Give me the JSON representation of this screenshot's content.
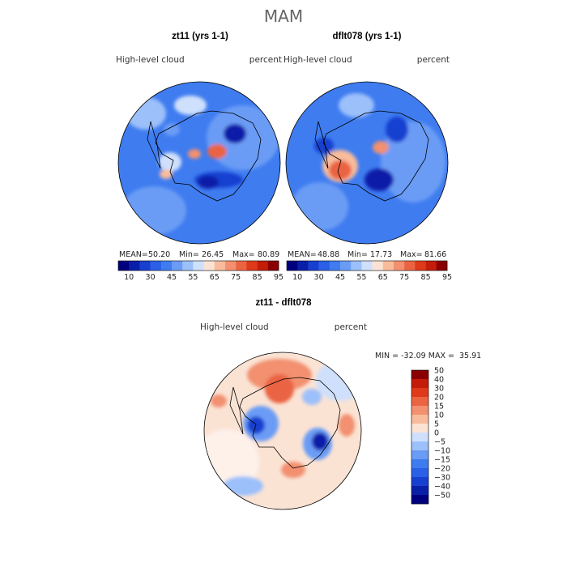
{
  "figure_title": "MAM",
  "colors": {
    "ramp": [
      "#00007f",
      "#0a1fa8",
      "#1840d0",
      "#2a5fe6",
      "#3f7cf0",
      "#6a9cf5",
      "#9cc0fa",
      "#cfe0fc",
      "#fbe3d4",
      "#f8bb9c",
      "#f29070",
      "#ea6442",
      "#de3a1a",
      "#c41c08",
      "#8a0000"
    ],
    "coast": "#000000"
  },
  "panels": [
    {
      "title": "zt11 (yrs 1-1)",
      "field_label": "High-level cloud",
      "units": "percent",
      "mean_label": "MEAN=",
      "mean_value": "50.20",
      "min_label": "Min=",
      "min_value": "26.45",
      "max_label": "Max=",
      "max_value": "80.89"
    },
    {
      "title": "dflt078 (yrs 1-1)",
      "field_label": "High-level cloud",
      "units": "percent",
      "mean_label": "MEAN=",
      "mean_value": "48.88",
      "min_label": "Min=",
      "min_value": "17.73",
      "max_label": "Max=",
      "max_value": "81.66"
    },
    {
      "title": "zt11 - dflt078",
      "field_label": "High-level cloud",
      "units": "percent",
      "minmax_text": "MIN = -32.09 MAX =  35.91"
    }
  ],
  "chart_data": [
    {
      "type": "heatmap",
      "title": "zt11 (yrs 1-1)",
      "projection": "south polar stereographic",
      "variable": "High-level cloud",
      "units": "percent",
      "stats": {
        "mean": 50.2,
        "min": 26.45,
        "max": 80.89
      },
      "levels": [
        10,
        20,
        30,
        40,
        45,
        50,
        55,
        60,
        65,
        70,
        75,
        80,
        85,
        90,
        95
      ],
      "colorbar_tick_labels": [
        "10",
        "30",
        "45",
        "55",
        "65",
        "75",
        "85",
        "95"
      ],
      "features": [
        {
          "lon": 120,
          "lat": -75,
          "value": 35
        },
        {
          "lon": -150,
          "lat": -80,
          "value": 30
        },
        {
          "lon": -60,
          "lat": -70,
          "value": 60
        },
        {
          "lon": 60,
          "lat": -72,
          "value": 62
        },
        {
          "lon": 170,
          "lat": -85,
          "value": 68
        },
        {
          "lon": 30,
          "lat": -55,
          "value": 45
        },
        {
          "lon": -120,
          "lat": -55,
          "value": 40
        },
        {
          "lon": 90,
          "lat": -55,
          "value": 38
        }
      ]
    },
    {
      "type": "heatmap",
      "title": "dflt078 (yrs 1-1)",
      "projection": "south polar stereographic",
      "variable": "High-level cloud",
      "units": "percent",
      "stats": {
        "mean": 48.88,
        "min": 17.73,
        "max": 81.66
      },
      "levels": [
        10,
        20,
        30,
        40,
        45,
        50,
        55,
        60,
        65,
        70,
        75,
        80,
        85,
        90,
        95
      ],
      "colorbar_tick_labels": [
        "10",
        "30",
        "45",
        "55",
        "65",
        "75",
        "85",
        "95"
      ],
      "features": [
        {
          "lon": 120,
          "lat": -75,
          "value": 33
        },
        {
          "lon": -150,
          "lat": -80,
          "value": 28
        },
        {
          "lon": -60,
          "lat": -68,
          "value": 72
        },
        {
          "lon": 60,
          "lat": -72,
          "value": 60
        },
        {
          "lon": 40,
          "lat": -82,
          "value": 30
        },
        {
          "lon": -90,
          "lat": -60,
          "value": 40
        },
        {
          "lon": 150,
          "lat": -60,
          "value": 42
        },
        {
          "lon": -20,
          "lat": -60,
          "value": 50
        }
      ]
    },
    {
      "type": "heatmap",
      "title": "zt11 - dflt078",
      "projection": "south polar stereographic",
      "variable": "High-level cloud",
      "units": "percent",
      "stats": {
        "min": -32.09,
        "max": 35.91
      },
      "levels": [
        -50,
        -40,
        -30,
        -20,
        -15,
        -10,
        -5,
        0,
        5,
        10,
        15,
        20,
        30,
        40,
        50
      ],
      "colorbar_tick_labels": [
        "50",
        "40",
        "30",
        "20",
        "15",
        "10",
        "5",
        "0",
        "−5",
        "−10",
        "−15",
        "−20",
        "−30",
        "−40",
        "−50"
      ],
      "features": [
        {
          "lon": 10,
          "lat": -62,
          "value": 20
        },
        {
          "lon": -90,
          "lat": -78,
          "value": -18
        },
        {
          "lon": 150,
          "lat": -82,
          "value": -20
        },
        {
          "lon": -60,
          "lat": -60,
          "value": -12
        },
        {
          "lon": 150,
          "lat": -65,
          "value": 12
        },
        {
          "lon": 90,
          "lat": -60,
          "value": 10
        },
        {
          "lon": -120,
          "lat": -55,
          "value": 8
        },
        {
          "lon": 60,
          "lat": -55,
          "value": 6
        }
      ]
    }
  ]
}
